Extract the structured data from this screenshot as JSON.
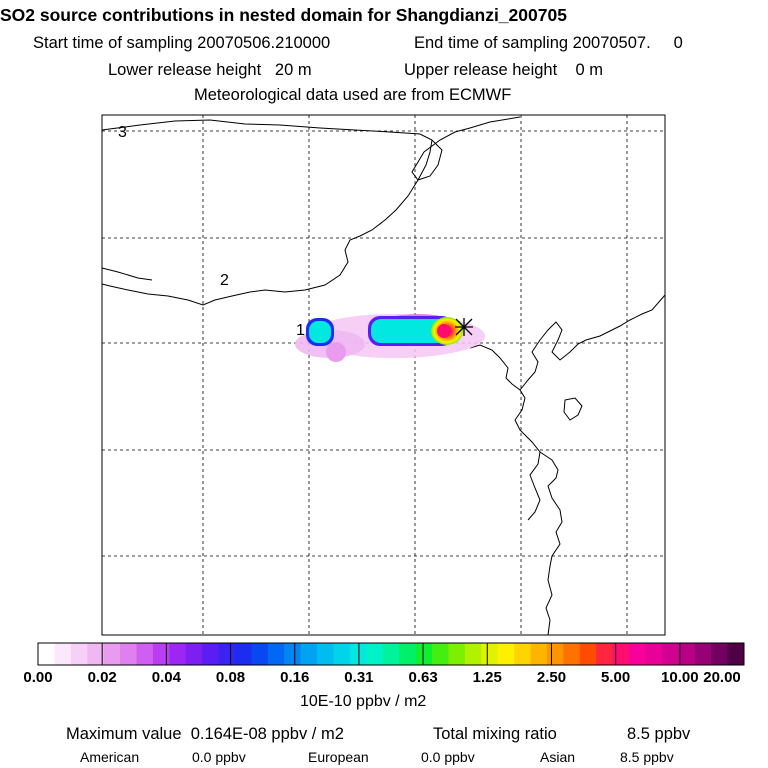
{
  "header": {
    "title": "SO2 source contributions in nested domain for Shangdianzi_200705",
    "start_sampling": "Start time of sampling 20070506.210000",
    "end_sampling": "End time of sampling 20070507.     0",
    "lower_release": "Lower release height   20 m",
    "upper_release": "Upper release height    0 m",
    "met_data": "Meteorological data used are from ECMWF"
  },
  "map": {
    "region_labels": [
      "1",
      "2",
      "3"
    ],
    "station_marker_color": "#000000"
  },
  "colorbar": {
    "tick_labels": [
      "0.00",
      "0.02",
      "0.04",
      "0.08",
      "0.16",
      "0.31",
      "0.63",
      "1.25",
      "2.50",
      "5.00",
      "10.00",
      "20.00"
    ],
    "units": "10E-10 ppbv / m2",
    "colors": [
      "#ffffff",
      "#fbe9fb",
      "#f6d0f6",
      "#f0b8f2",
      "#e99cef",
      "#de80ed",
      "#cf5ff0",
      "#bb3cf2",
      "#9e26f2",
      "#7d1ef2",
      "#5a1ef2",
      "#3a22f0",
      "#1c2cf0",
      "#0848f0",
      "#0068f2",
      "#0086f2",
      "#00a2f2",
      "#00bdf0",
      "#00d4ea",
      "#00e8e0",
      "#00f2c8",
      "#00f29a",
      "#00f068",
      "#10ee30",
      "#44ee10",
      "#7cf000",
      "#b0f200",
      "#e0f200",
      "#fff000",
      "#ffd400",
      "#ffb400",
      "#ff9400",
      "#ff7200",
      "#ff4c00",
      "#ff2440",
      "#ff0c70",
      "#f8009a",
      "#e80098",
      "#d20090",
      "#b80086",
      "#980076",
      "#720060",
      "#500044"
    ]
  },
  "summary": {
    "max_value": "Maximum value  0.164E-08 ppbv / m2",
    "total_label": "Total mixing ratio",
    "total_value": "8.5 ppbv",
    "american_label": "American",
    "american_value": "0.0 ppbv",
    "european_label": "European",
    "european_value": "0.0 ppbv",
    "asian_label": "Asian",
    "asian_value": "8.5 ppbv"
  }
}
